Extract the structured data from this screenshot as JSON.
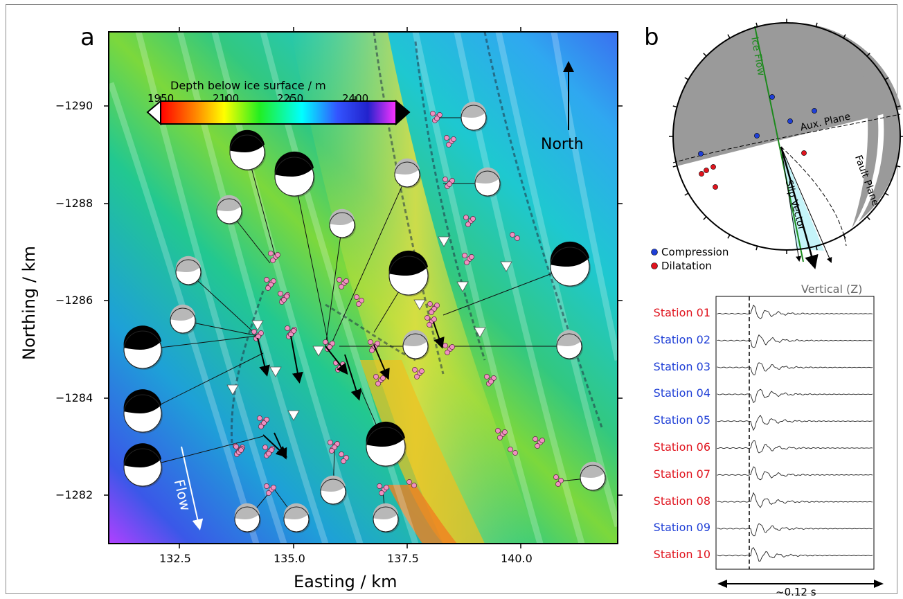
{
  "panels": {
    "a": "a",
    "b": "b"
  },
  "panel_a": {
    "x_axis_title": "Easting / km",
    "y_axis_title": "Northing / km",
    "x_ticks": [
      "132.5",
      "135.0",
      "137.5",
      "140.0"
    ],
    "y_ticks": [
      "−1290",
      "−1288",
      "−1286",
      "−1284",
      "−1282"
    ],
    "colorbar": {
      "title": "Depth below ice surface / m",
      "ticks": [
        "1950",
        "2100",
        "2250",
        "2400"
      ],
      "range_m": [
        1950,
        2500
      ],
      "colormap": "rainbow"
    },
    "north_label": "North",
    "flow_label": "Flow",
    "colors": {
      "events": "#f08fc0",
      "stations": "#ffffff",
      "beachball_fill": "#000000",
      "background_cmap_low": "#ff0000",
      "background_cmap_high": "#ff33ff"
    }
  },
  "panel_b": {
    "labels": {
      "ice_flow": "Ice Flow",
      "aux_plane": "Aux. Plane",
      "fault_plane": "Fault Plane",
      "slip_vector": "Slip Vector"
    },
    "legend": [
      {
        "label": "Compression",
        "color": "#1f3fd6"
      },
      {
        "label": "Dilatation",
        "color": "#e0141e"
      }
    ],
    "waveform_title": "Vertical (Z)",
    "time_label": "~0.12 s",
    "stations": [
      {
        "name": "Station 01",
        "polarity": "red"
      },
      {
        "name": "Station 02",
        "polarity": "blue"
      },
      {
        "name": "Station 03",
        "polarity": "blue"
      },
      {
        "name": "Station 04",
        "polarity": "blue"
      },
      {
        "name": "Station 05",
        "polarity": "blue"
      },
      {
        "name": "Station 06",
        "polarity": "red"
      },
      {
        "name": "Station 07",
        "polarity": "red"
      },
      {
        "name": "Station 08",
        "polarity": "red"
      },
      {
        "name": "Station 09",
        "polarity": "blue"
      },
      {
        "name": "Station 10",
        "polarity": "red"
      }
    ]
  }
}
